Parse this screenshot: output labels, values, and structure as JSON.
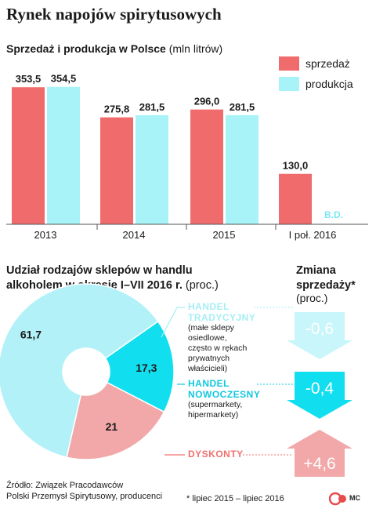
{
  "title": "Rynek napojów spirytusowych",
  "colors": {
    "sales": "#f06b6b",
    "production": "#a8f3f8",
    "traditional": "#b3f1f8",
    "modern": "#11dff0",
    "discount": "#f2a8a8",
    "arrow_neg_light": "#c8f6fa",
    "arrow_neg": "#11dff0",
    "arrow_pos": "#f2a8a8",
    "label_traditional": "#a6eef5",
    "label_modern": "#12c8e0",
    "label_discount": "#f0706e",
    "na": "#7ce6f2",
    "logo": "#e84b4b"
  },
  "bar_section": {
    "title_bold": "Sprzedaż i produkcja w Polsce",
    "title_unit": "(mln litrów)",
    "legend": [
      "sprzedaż",
      "produkcja"
    ]
  },
  "pie_section": {
    "title_line1": "Udział rodzajów sklepów w handlu",
    "title_line2": "alkoholem w okresie I–VII 2016 r.",
    "title_unit": "(proc.)",
    "change_title_line1": "Zmiana",
    "change_title_line2": "sprzedaży*",
    "change_unit": "(proc.)",
    "categories": [
      {
        "name_line1": "HANDEL",
        "name_line2": "TRADYCYJNY",
        "desc": [
          "(małe sklepy",
          "osiedlowe,",
          "często w rękach",
          "prywatnych",
          "właścicieli)"
        ]
      },
      {
        "name_line1": "HANDEL",
        "name_line2": "NOWOCZESNY",
        "desc": [
          "(supermarkety,",
          "hipermarkety)"
        ]
      },
      {
        "name_line1": "DYSKONTY",
        "name_line2": "",
        "desc": []
      }
    ]
  },
  "chart_data": [
    {
      "type": "bar",
      "title": "Sprzedaż i produkcja w Polsce",
      "ylabel": "(mln litrów)",
      "categories": [
        "2013",
        "2014",
        "2015",
        "I poł. 2016"
      ],
      "series": [
        {
          "name": "sprzedaż",
          "values": [
            353.5,
            275.8,
            296.0,
            130.0
          ],
          "labels": [
            "353,5",
            "275,8",
            "296,0",
            "130,0"
          ]
        },
        {
          "name": "produkcja",
          "values": [
            354.5,
            281.5,
            281.5,
            null
          ],
          "labels": [
            "354,5",
            "281,5",
            "281,5",
            "B.D."
          ]
        }
      ],
      "ylim": [
        0,
        360
      ],
      "legend": "top-right",
      "grid": false
    },
    {
      "type": "pie",
      "title": "Udział rodzajów sklepów w handlu alkoholem w okresie I–VII 2016 r.",
      "unit": "(proc.)",
      "donut": true,
      "slices": [
        {
          "name": "HANDEL TRADYCYJNY",
          "value": 61.7,
          "label": "61,7"
        },
        {
          "name": "HANDEL NOWOCZESNY",
          "value": 17.3,
          "label": "17,3"
        },
        {
          "name": "DYSKONTY",
          "value": 21,
          "label": "21"
        }
      ]
    },
    {
      "type": "table",
      "title": "Zmiana sprzedaży*",
      "unit": "(proc.)",
      "rows": [
        {
          "name": "HANDEL TRADYCYJNY",
          "value": -0.6,
          "label": "-0,6"
        },
        {
          "name": "HANDEL NOWOCZESNY",
          "value": -0.4,
          "label": "-0,4"
        },
        {
          "name": "DYSKONTY",
          "value": 4.6,
          "label": "+4,6"
        }
      ]
    }
  ],
  "source": {
    "line1": "Źródło: Związek Pracodawców",
    "line2": "Polski Przemysł Spirytusowy, producenci"
  },
  "footnote": "* lipiec 2015 – lipiec 2016",
  "logo": {
    "mark": "CP",
    "text": "MC"
  }
}
